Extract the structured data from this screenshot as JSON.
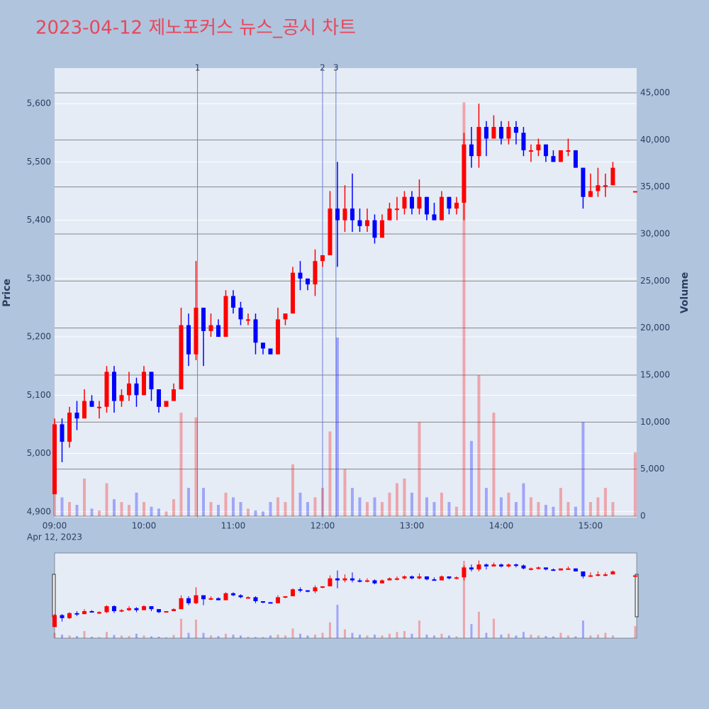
{
  "chart_data": {
    "type": "candlestick",
    "title": "2023-04-12 제노포커스 뉴스_공시 차트",
    "y_label": "Price",
    "y2_label": "Volume",
    "x_date_label": "Apr 12, 2023",
    "increasing_color": "#ff0000",
    "decreasing_color": "#0000ff",
    "grid": true,
    "range_slider": true,
    "xlim": [
      "09:00",
      "15:31"
    ],
    "xticks": [
      "09:00",
      "10:00",
      "11:00",
      "12:00",
      "13:00",
      "14:00",
      "15:00"
    ],
    "ylim": [
      4890,
      5661
    ],
    "yticks": [
      {
        "value": 4900,
        "label": "4,900"
      },
      {
        "value": 5000,
        "label": "5,000"
      },
      {
        "value": 5100,
        "label": "5,100"
      },
      {
        "value": 5200,
        "label": "5,200"
      },
      {
        "value": 5300,
        "label": "5,300"
      },
      {
        "value": 5400,
        "label": "5,400"
      },
      {
        "value": 5500,
        "label": "5,500"
      },
      {
        "value": 5600,
        "label": "5,600"
      }
    ],
    "y2lim": [
      0,
      47640
    ],
    "y2ticks": [
      0,
      {
        "value": 5000,
        "label": "5,000"
      },
      {
        "value": 10000,
        "label": "10,000"
      },
      {
        "value": 15000,
        "label": "15,000"
      },
      {
        "value": 20000,
        "label": "20,000"
      },
      {
        "value": 25000,
        "label": "25,000"
      },
      {
        "value": 30000,
        "label": "30,000"
      },
      {
        "value": 35000,
        "label": "35,000"
      },
      {
        "value": 40000,
        "label": "40,000"
      },
      {
        "value": 45000,
        "label": "45,000"
      }
    ],
    "annotations": [
      {
        "x": "10:36",
        "text": "1"
      },
      {
        "x": "12:00",
        "text": "2"
      },
      {
        "x": "12:09",
        "text": "3"
      }
    ],
    "x": [
      "09:00",
      "09:05",
      "09:10",
      "09:15",
      "09:20",
      "09:25",
      "09:30",
      "09:35",
      "09:40",
      "09:45",
      "09:50",
      "09:55",
      "10:00",
      "10:05",
      "10:10",
      "10:15",
      "10:20",
      "10:25",
      "10:30",
      "10:35",
      "10:40",
      "10:45",
      "10:50",
      "10:55",
      "11:00",
      "11:05",
      "11:10",
      "11:15",
      "11:20",
      "11:25",
      "11:30",
      "11:35",
      "11:40",
      "11:45",
      "11:50",
      "11:55",
      "12:00",
      "12:05",
      "12:10",
      "12:15",
      "12:20",
      "12:25",
      "12:30",
      "12:35",
      "12:40",
      "12:45",
      "12:50",
      "12:55",
      "13:00",
      "13:05",
      "13:10",
      "13:15",
      "13:20",
      "13:25",
      "13:30",
      "13:35",
      "13:40",
      "13:45",
      "13:50",
      "13:55",
      "14:00",
      "14:05",
      "14:10",
      "14:15",
      "14:20",
      "14:25",
      "14:30",
      "14:35",
      "14:40",
      "14:45",
      "14:50",
      "14:55",
      "15:00",
      "15:05",
      "15:10",
      "15:15",
      "15:30"
    ],
    "open": [
      4930,
      5050,
      5020,
      5070,
      5060,
      5090,
      5080,
      5080,
      5140,
      5090,
      5100,
      5120,
      5100,
      5140,
      5110,
      5080,
      5090,
      5110,
      5220,
      5170,
      5250,
      5210,
      5220,
      5200,
      5270,
      5250,
      5230,
      5230,
      5190,
      5180,
      5170,
      5230,
      5240,
      5310,
      5300,
      5290,
      5330,
      5340,
      5420,
      5400,
      5420,
      5400,
      5390,
      5400,
      5370,
      5400,
      5420,
      5420,
      5440,
      5420,
      5440,
      5410,
      5400,
      5440,
      5420,
      5430,
      5530,
      5510,
      5560,
      5540,
      5560,
      5540,
      5560,
      5550,
      5520,
      5520,
      5530,
      5510,
      5500,
      5520,
      5520,
      5490,
      5440,
      5450,
      5460,
      5460,
      5450
    ],
    "high": [
      5060,
      5060,
      5080,
      5090,
      5110,
      5100,
      5090,
      5150,
      5150,
      5110,
      5140,
      5130,
      5150,
      5140,
      5110,
      5090,
      5120,
      5250,
      5240,
      5330,
      5250,
      5240,
      5230,
      5280,
      5280,
      5260,
      5240,
      5240,
      5190,
      5180,
      5250,
      5240,
      5320,
      5330,
      5300,
      5350,
      5340,
      5450,
      5500,
      5460,
      5480,
      5420,
      5420,
      5410,
      5410,
      5430,
      5440,
      5450,
      5450,
      5470,
      5440,
      5430,
      5450,
      5440,
      5440,
      5550,
      5560,
      5600,
      5570,
      5580,
      5570,
      5570,
      5570,
      5560,
      5530,
      5540,
      5530,
      5520,
      5520,
      5540,
      5520,
      5490,
      5480,
      5490,
      5480,
      5500,
      5450
    ],
    "low": [
      4930,
      4985,
      5010,
      5040,
      5060,
      5080,
      5060,
      5070,
      5070,
      5080,
      5090,
      5080,
      5100,
      5090,
      5070,
      5080,
      5090,
      5110,
      5150,
      5160,
      5150,
      5200,
      5200,
      5200,
      5240,
      5220,
      5220,
      5170,
      5170,
      5170,
      5170,
      5220,
      5240,
      5280,
      5280,
      5270,
      5320,
      5340,
      5320,
      5380,
      5380,
      5380,
      5380,
      5360,
      5370,
      5400,
      5400,
      5410,
      5410,
      5410,
      5400,
      5400,
      5400,
      5410,
      5410,
      5400,
      5490,
      5490,
      5510,
      5540,
      5530,
      5530,
      5530,
      5510,
      5500,
      5510,
      5500,
      5500,
      5500,
      5510,
      5490,
      5420,
      5440,
      5440,
      5440,
      5460,
      5450
    ],
    "close": [
      5050,
      5020,
      5070,
      5060,
      5090,
      5080,
      5080,
      5140,
      5090,
      5100,
      5120,
      5100,
      5140,
      5110,
      5080,
      5090,
      5110,
      5220,
      5170,
      5250,
      5210,
      5220,
      5200,
      5270,
      5250,
      5230,
      5230,
      5190,
      5180,
      5170,
      5230,
      5240,
      5310,
      5300,
      5290,
      5330,
      5340,
      5420,
      5400,
      5420,
      5400,
      5390,
      5400,
      5370,
      5400,
      5420,
      5420,
      5440,
      5420,
      5440,
      5410,
      5400,
      5440,
      5420,
      5430,
      5530,
      5510,
      5560,
      5540,
      5560,
      5540,
      5560,
      5550,
      5520,
      5520,
      5530,
      5510,
      5500,
      5520,
      5520,
      5490,
      5440,
      5450,
      5460,
      5460,
      5490,
      5450
    ],
    "volume": [
      3000,
      2000,
      1500,
      1200,
      4000,
      800,
      600,
      3500,
      1800,
      1500,
      1200,
      2500,
      1500,
      1000,
      800,
      500,
      1800,
      11000,
      3000,
      10500,
      3000,
      1500,
      1200,
      2500,
      2000,
      1500,
      800,
      600,
      500,
      1500,
      2000,
      1500,
      5500,
      2500,
      1500,
      2000,
      3000,
      9000,
      19000,
      5000,
      3000,
      2000,
      1500,
      2000,
      1500,
      2500,
      3500,
      4000,
      2500,
      10000,
      2000,
      1500,
      2500,
      1500,
      1000,
      44000,
      8000,
      15000,
      3000,
      11000,
      2000,
      2500,
      1500,
      3500,
      2000,
      1500,
      1200,
      1000,
      3000,
      1500,
      1000,
      10000,
      1500,
      2000,
      3000,
      1500,
      6800
    ]
  }
}
